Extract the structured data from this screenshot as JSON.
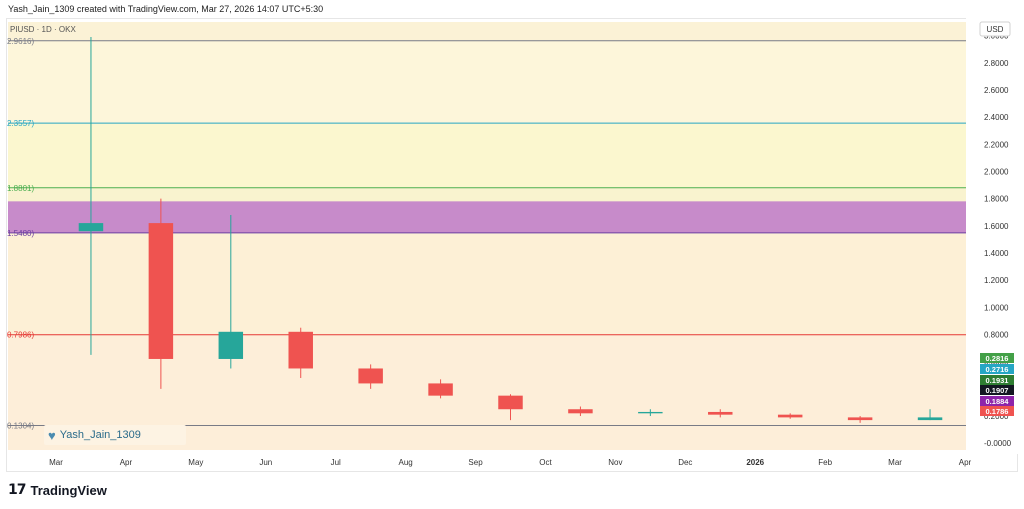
{
  "header": {
    "caption": "Yash_Jain_1309 created with TradingView.com, Mar 27, 2026 14:07 UTC+5:30"
  },
  "chart_data": {
    "type": "candlestick",
    "symbol_label": "PIUSD · 1D · OKX",
    "currency": "USD",
    "ylim": [
      -0.05,
      3.1
    ],
    "y_ticks": [
      "3.0000",
      "2.8000",
      "2.6000",
      "2.4000",
      "2.2000",
      "2.0000",
      "1.8000",
      "1.6000",
      "1.4000",
      "1.2000",
      "1.0000",
      "0.8000",
      "0.6000",
      "0.4000",
      "0.2000",
      "-0.0000"
    ],
    "x_ticks": [
      "Mar",
      "Apr",
      "May",
      "Jun",
      "Jul",
      "Aug",
      "Sep",
      "Oct",
      "Nov",
      "Dec",
      "2026",
      "Feb",
      "Mar",
      "Apr"
    ],
    "fib_levels": [
      {
        "label": "2.9616)",
        "value": 2.9616,
        "color": "#787b86"
      },
      {
        "label": "2.3557)",
        "value": 2.3557,
        "color": "#26a6c4"
      },
      {
        "label": "1.8801)",
        "value": 1.8801,
        "color": "#4caf50"
      },
      {
        "label": "1.5480)",
        "value": 1.548,
        "color": "#6b3fa0"
      },
      {
        "label": "0.7986)",
        "value": 0.7986,
        "color": "#e53935"
      },
      {
        "label": "0.1304)",
        "value": 0.1304,
        "color": "#787b86"
      }
    ],
    "price_labels": [
      {
        "text": "0.2816",
        "color": "#43a047"
      },
      {
        "text": "0.2716",
        "color": "#26a6c4"
      },
      {
        "text": "0.1931",
        "color": "#2e7d32"
      },
      {
        "text": "0.1907",
        "color": "#131722"
      },
      {
        "text": "0.1884",
        "color": "#8e24aa"
      },
      {
        "text": "0.1786",
        "color": "#ef5350"
      }
    ],
    "zone": {
      "top": 1.78,
      "bottom": 1.548,
      "color": "#c17fc9"
    },
    "colors": {
      "up": "#26a69a",
      "down": "#ef5350"
    },
    "months": [
      {
        "o": 1.56,
        "h": 2.99,
        "l": 0.65,
        "c": 1.62
      },
      {
        "o": 1.62,
        "h": 1.8,
        "l": 0.4,
        "c": 0.62
      },
      {
        "o": 0.62,
        "h": 1.68,
        "l": 0.55,
        "c": 0.82
      },
      {
        "o": 0.82,
        "h": 0.85,
        "l": 0.48,
        "c": 0.55
      },
      {
        "o": 0.55,
        "h": 0.58,
        "l": 0.4,
        "c": 0.44
      },
      {
        "o": 0.44,
        "h": 0.47,
        "l": 0.33,
        "c": 0.35
      },
      {
        "o": 0.35,
        "h": 0.36,
        "l": 0.17,
        "c": 0.25
      },
      {
        "o": 0.25,
        "h": 0.27,
        "l": 0.2,
        "c": 0.22
      },
      {
        "o": 0.22,
        "h": 0.25,
        "l": 0.2,
        "c": 0.23
      },
      {
        "o": 0.23,
        "h": 0.25,
        "l": 0.19,
        "c": 0.21
      },
      {
        "o": 0.21,
        "h": 0.22,
        "l": 0.18,
        "c": 0.19
      },
      {
        "o": 0.19,
        "h": 0.2,
        "l": 0.15,
        "c": 0.17
      },
      {
        "o": 0.17,
        "h": 0.25,
        "l": 0.17,
        "c": 0.19
      }
    ]
  },
  "watermark": {
    "text": "Yash_Jain_1309"
  },
  "footer": {
    "brand": "TradingView"
  }
}
